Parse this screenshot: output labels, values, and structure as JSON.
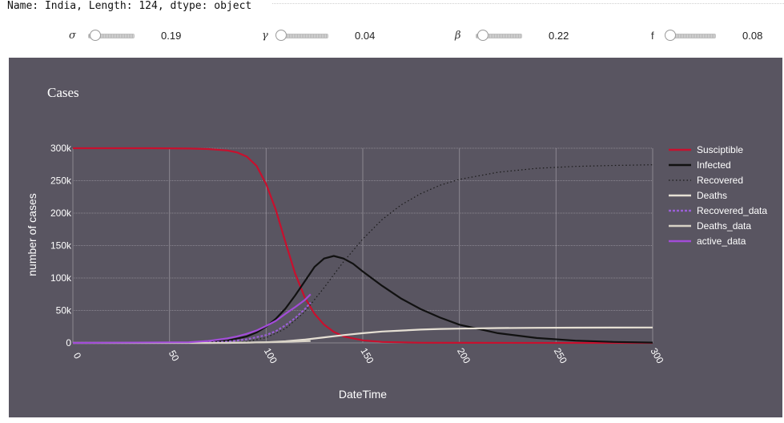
{
  "output_text": "Name: India, Length: 124, dtype: object",
  "sliders": [
    {
      "label": "σ",
      "value": "0.19"
    },
    {
      "label": "γ",
      "value": "0.04"
    },
    {
      "label": "β",
      "value": "0.22"
    },
    {
      "label": "f",
      "value": "0.08"
    }
  ],
  "chart_data": {
    "type": "line",
    "title": "Cases",
    "xlabel": "DateTime",
    "ylabel": "number of cases",
    "xlim": [
      0,
      300
    ],
    "ylim": [
      0,
      300000
    ],
    "x_ticks": [
      0,
      50,
      100,
      150,
      200,
      250,
      300
    ],
    "x_tick_labels": [
      "0",
      "50",
      "100",
      "150",
      "200",
      "250",
      "300"
    ],
    "y_ticks": [
      0,
      50000,
      100000,
      150000,
      200000,
      250000,
      300000
    ],
    "y_tick_labels": [
      "0",
      "50k",
      "100k",
      "150k",
      "200k",
      "250k",
      "300k"
    ],
    "grid": true,
    "legend_position": "right",
    "background": "#595561",
    "series": [
      {
        "name": "Susciptible",
        "color": "#c8102e",
        "style": "solid",
        "x": [
          0,
          40,
          60,
          70,
          80,
          85,
          90,
          95,
          100,
          105,
          110,
          115,
          120,
          125,
          130,
          135,
          140,
          150,
          160,
          180,
          200,
          250,
          300
        ],
        "y": [
          300000,
          300000,
          299500,
          298800,
          296500,
          293500,
          287000,
          273000,
          245000,
          205000,
          155000,
          107000,
          70000,
          45000,
          28000,
          17000,
          10000,
          4000,
          1500,
          300,
          100,
          0,
          0
        ]
      },
      {
        "name": "Infected",
        "color": "#111111",
        "style": "solid",
        "x": [
          0,
          60,
          70,
          80,
          90,
          95,
          100,
          105,
          110,
          115,
          120,
          125,
          130,
          135,
          140,
          145,
          150,
          160,
          170,
          180,
          190,
          200,
          220,
          240,
          260,
          280,
          300
        ],
        "y": [
          0,
          0,
          1000,
          3500,
          10000,
          16000,
          25000,
          37000,
          53000,
          73000,
          95000,
          117000,
          130000,
          134000,
          130000,
          122000,
          110000,
          88000,
          68000,
          52000,
          39000,
          28000,
          15000,
          7500,
          3500,
          1500,
          500
        ]
      },
      {
        "name": "Recovered",
        "color": "#1a1a1a",
        "style": "dotted",
        "x": [
          0,
          80,
          90,
          100,
          110,
          120,
          130,
          140,
          150,
          160,
          170,
          180,
          190,
          200,
          220,
          240,
          260,
          280,
          300
        ],
        "y": [
          0,
          0,
          2000,
          8000,
          22000,
          48000,
          85000,
          125000,
          160000,
          190000,
          213000,
          230000,
          243000,
          252000,
          263000,
          269000,
          272000,
          273500,
          274500
        ]
      },
      {
        "name": "Deaths",
        "color": "#e6e0d4",
        "style": "solid",
        "x": [
          0,
          80,
          100,
          110,
          120,
          130,
          140,
          150,
          160,
          170,
          180,
          190,
          200,
          220,
          240,
          260,
          280,
          300
        ],
        "y": [
          0,
          0,
          1000,
          2500,
          5000,
          8500,
          12000,
          15000,
          17500,
          19000,
          20500,
          21500,
          22000,
          22800,
          23200,
          23500,
          23600,
          23700
        ]
      },
      {
        "name": "Recovered_data",
        "color": "#9a5fd6",
        "style": "dashed",
        "x": [
          0,
          60,
          70,
          80,
          90,
          100,
          105,
          110,
          115,
          120,
          123
        ],
        "y": [
          0,
          0,
          500,
          2000,
          5500,
          12000,
          18000,
          27000,
          38000,
          52000,
          62000
        ]
      },
      {
        "name": "Deaths_data",
        "color": "#d8d2c6",
        "style": "solid",
        "x": [
          0,
          70,
          80,
          90,
          100,
          110,
          120,
          123
        ],
        "y": [
          0,
          0,
          200,
          500,
          1000,
          1700,
          2600,
          3000
        ]
      },
      {
        "name": "active_data",
        "color": "#a24cd8",
        "style": "solid",
        "x": [
          0,
          60,
          70,
          80,
          85,
          90,
          95,
          100,
          105,
          110,
          115,
          120,
          123
        ],
        "y": [
          0,
          1000,
          3000,
          7000,
          10000,
          14000,
          19000,
          26000,
          34000,
          45000,
          55000,
          66000,
          75000
        ]
      }
    ]
  }
}
